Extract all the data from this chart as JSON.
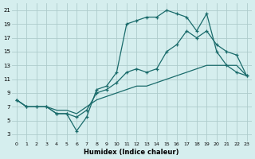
{
  "xlabel": "Humidex (Indice chaleur)",
  "background_color": "#d5eeee",
  "grid_color": "#aecccc",
  "line_color": "#1a6b6b",
  "xlim": [
    -0.5,
    23.5
  ],
  "ylim": [
    2,
    22
  ],
  "yticks": [
    3,
    5,
    7,
    9,
    11,
    13,
    15,
    17,
    19,
    21
  ],
  "xticks": [
    0,
    1,
    2,
    3,
    4,
    5,
    6,
    7,
    8,
    9,
    10,
    11,
    12,
    13,
    14,
    15,
    16,
    17,
    18,
    19,
    20,
    21,
    22,
    23
  ],
  "line1_x": [
    0,
    1,
    2,
    3,
    4,
    5,
    6,
    7,
    8,
    9,
    10,
    11,
    12,
    13,
    14,
    15,
    16,
    17,
    18,
    19,
    20,
    21,
    22,
    23
  ],
  "line1_y": [
    8,
    7,
    7,
    7,
    6,
    6,
    3.5,
    5.5,
    9.5,
    10,
    12,
    19,
    19.5,
    20,
    20,
    21,
    20.5,
    20,
    18,
    20.5,
    15,
    13,
    12,
    11.5
  ],
  "line2_x": [
    0,
    1,
    2,
    3,
    4,
    5,
    6,
    7,
    8,
    9,
    10,
    11,
    12,
    13,
    14,
    15,
    16,
    17,
    18,
    19,
    20,
    21,
    22,
    23
  ],
  "line2_y": [
    8,
    7,
    7,
    7,
    6,
    6,
    5.5,
    6.5,
    9,
    9.5,
    10.5,
    12,
    12.5,
    12,
    12.5,
    15,
    16,
    18,
    17,
    18,
    16,
    15,
    14.5,
    11.5
  ],
  "line3_x": [
    0,
    1,
    2,
    3,
    4,
    5,
    6,
    7,
    8,
    9,
    10,
    11,
    12,
    13,
    14,
    15,
    16,
    17,
    18,
    19,
    20,
    21,
    22,
    23
  ],
  "line3_y": [
    8,
    7,
    7,
    7,
    6.5,
    6.5,
    6,
    7,
    8,
    8.5,
    9,
    9.5,
    10,
    10,
    10.5,
    11,
    11.5,
    12,
    12.5,
    13,
    13,
    13,
    13,
    11.5
  ]
}
